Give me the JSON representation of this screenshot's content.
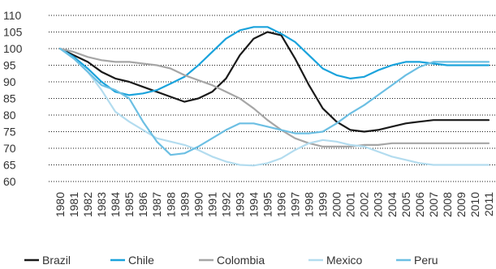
{
  "colors": {
    "brazil": "#1a1a1a",
    "chile": "#1ba3dc",
    "colombia": "#a6a6a6",
    "mexico": "#b3dcef",
    "peru": "#6cbfe3",
    "grid": "#1a1a1a"
  },
  "chart_data": {
    "type": "line",
    "title": "",
    "xlabel": "",
    "ylabel": "",
    "ylim": [
      60,
      110
    ],
    "yticks": [
      60,
      65,
      70,
      75,
      80,
      85,
      90,
      95,
      100,
      105,
      110
    ],
    "grid": "horizontal dotted",
    "legend_position": "bottom",
    "x": [
      "1980",
      "1981",
      "1982",
      "1983",
      "1984",
      "1985",
      "1986",
      "1987",
      "1988",
      "1989",
      "1990",
      "1991",
      "1992",
      "1993",
      "1994",
      "1995",
      "1996",
      "1997",
      "1998",
      "1999",
      "2000",
      "2001",
      "2002",
      "2003",
      "2004",
      "2005",
      "2006",
      "2007",
      "2008",
      "2009",
      "2010",
      "2011"
    ],
    "series": [
      {
        "name": "Brazil",
        "color_key": "brazil",
        "values": [
          100,
          98,
          96,
          93,
          91,
          90,
          88.5,
          87,
          85.5,
          84,
          85,
          87,
          91,
          98,
          103,
          105,
          104,
          97,
          89,
          82,
          78,
          75.5,
          75,
          75.5,
          76.5,
          77.5,
          78,
          78.5,
          78.5,
          78.5,
          78.5,
          78.5
        ]
      },
      {
        "name": "Chile",
        "color_key": "chile",
        "values": [
          100,
          97.5,
          94,
          90,
          87,
          86,
          86.5,
          87.5,
          89.5,
          91.5,
          95,
          99,
          103,
          105.5,
          106.5,
          106.5,
          104.5,
          102,
          98,
          94,
          92,
          91,
          91.5,
          93.5,
          95,
          96,
          96,
          95.5,
          95,
          95,
          95,
          95
        ]
      },
      {
        "name": "Colombia",
        "color_key": "colombia",
        "values": [
          100,
          99,
          97.5,
          96.5,
          96,
          96,
          95.5,
          95,
          94,
          92,
          90.5,
          89,
          87,
          85,
          82,
          78.5,
          75.5,
          73,
          71.5,
          70.5,
          70.5,
          70.5,
          71,
          71,
          71.5,
          71.5,
          71.5,
          71.5,
          71.5,
          71.5,
          71.5,
          71.5
        ]
      },
      {
        "name": "Mexico",
        "color_key": "mexico",
        "values": [
          100,
          97,
          93,
          87.5,
          81,
          78,
          75.5,
          73,
          72,
          71,
          69.5,
          67.5,
          66,
          65,
          64.8,
          65.5,
          67,
          69.5,
          71.5,
          72.5,
          72,
          71,
          70.5,
          69,
          67.5,
          66.5,
          65.5,
          65,
          65,
          65,
          65,
          65
        ]
      },
      {
        "name": "Peru",
        "color_key": "peru",
        "values": [
          100,
          97,
          93,
          89,
          87.5,
          85,
          78,
          72,
          68,
          68.5,
          70.5,
          73,
          75.5,
          77.5,
          77.5,
          76.5,
          75.5,
          74.5,
          74.5,
          75,
          77.5,
          80.5,
          83,
          86,
          89,
          92,
          94.5,
          96,
          96,
          96,
          96,
          96
        ]
      }
    ]
  }
}
